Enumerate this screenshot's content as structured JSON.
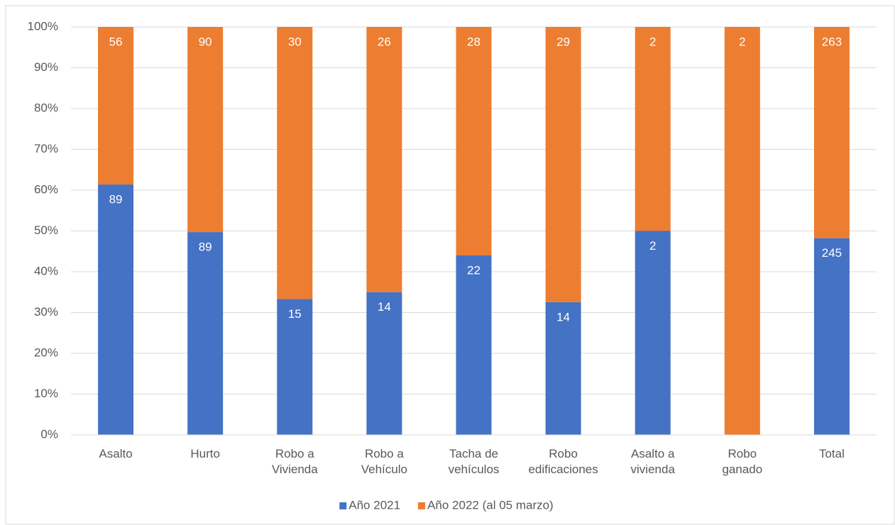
{
  "chart_data": {
    "type": "bar",
    "stacking": "percent",
    "categories": [
      "Asalto",
      "Hurto",
      "Robo a\nVivienda",
      "Robo a\nVehículo",
      "Tacha de\nvehículos",
      "Robo\nedificaciones",
      "Asalto a\nvivienda",
      "Robo\nganado",
      "Total"
    ],
    "series": [
      {
        "name": "Año 2021",
        "color": "#4472c4",
        "values": [
          89,
          89,
          15,
          14,
          22,
          14,
          2,
          0,
          245
        ]
      },
      {
        "name": "Año 2022 (al 05 marzo)",
        "color": "#ed7d31",
        "values": [
          56,
          90,
          30,
          26,
          28,
          29,
          2,
          2,
          263
        ]
      }
    ],
    "ylim": [
      0,
      100
    ],
    "yticks": [
      {
        "value": 0,
        "label": "0%"
      },
      {
        "value": 10,
        "label": "10%"
      },
      {
        "value": 20,
        "label": "20%"
      },
      {
        "value": 30,
        "label": "30%"
      },
      {
        "value": 40,
        "label": "40%"
      },
      {
        "value": 50,
        "label": "50%"
      },
      {
        "value": 60,
        "label": "60%"
      },
      {
        "value": 70,
        "label": "70%"
      },
      {
        "value": 80,
        "label": "80%"
      },
      {
        "value": 90,
        "label": "90%"
      },
      {
        "value": 100,
        "label": "100%"
      }
    ],
    "grid": true,
    "legend": "bottom"
  }
}
